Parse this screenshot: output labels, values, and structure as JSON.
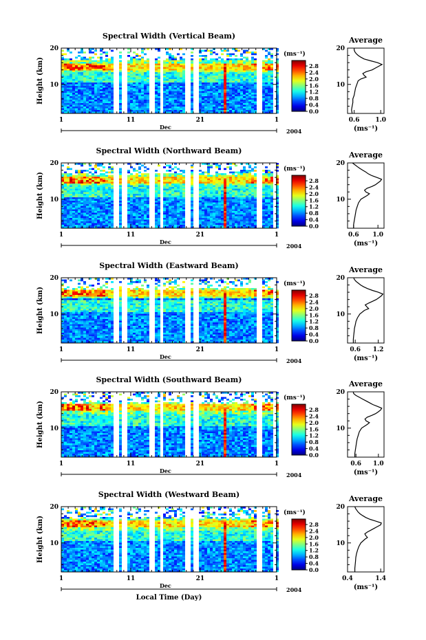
{
  "chart_data": [
    {
      "type": "heatmap",
      "title": "Spectral Width (Vertical Beam)",
      "ylabel": "Height (km)",
      "ylim": [
        2,
        20
      ],
      "y_ticks": [
        "20",
        "10"
      ],
      "x_ticks": [
        "1",
        "11",
        "21",
        "1"
      ],
      "x_month": "Dec",
      "x_year": "2004",
      "xlabel": "",
      "colorbar": {
        "unit": "(ms⁻¹)",
        "labels": [
          "0.0",
          "0.4",
          "0.8",
          "1.2",
          "1.6",
          "2.0",
          "2.4",
          "2.8"
        ],
        "range": [
          0,
          2.8
        ]
      },
      "layer_height_km": 15.2,
      "gaps": [
        [
          8.3,
          9.0
        ],
        [
          9.6,
          10.2
        ],
        [
          13.6,
          14.2
        ],
        [
          14.9,
          15.4
        ],
        [
          18.8,
          19.3
        ],
        [
          20.0,
          20.6
        ],
        [
          29.1,
          29.6
        ],
        [
          31.2,
          31.6
        ]
      ],
      "average": {
        "title": "Average",
        "xlim": [
          0.5,
          1.05
        ],
        "x_ticks": [
          "0.6",
          "1.0"
        ],
        "xlabel": "(ms⁻¹)",
        "height_km": [
          2.0,
          3.0,
          4.0,
          5.0,
          6.0,
          7.0,
          8.0,
          9.0,
          10.0,
          11.0,
          11.5,
          12.0,
          12.5,
          13.0,
          13.5,
          14.0,
          14.5,
          15.0,
          15.5,
          16.0,
          16.5,
          17.0,
          17.5,
          18.0,
          18.5,
          19.0,
          19.5,
          20.0
        ],
        "width": [
          0.57,
          0.56,
          0.57,
          0.58,
          0.58,
          0.6,
          0.61,
          0.62,
          0.64,
          0.66,
          0.7,
          0.78,
          0.75,
          0.73,
          0.78,
          0.87,
          0.92,
          0.97,
          1.02,
          0.95,
          0.85,
          0.75,
          0.7,
          0.66,
          0.63,
          0.61,
          0.6,
          0.6
        ]
      }
    },
    {
      "type": "heatmap",
      "title": "Spectral Width (Northward Beam)",
      "ylabel": "Height (km)",
      "ylim": [
        2,
        20
      ],
      "y_ticks": [
        "20",
        "10"
      ],
      "x_ticks": [
        "1",
        "11",
        "21",
        "1"
      ],
      "x_month": "Dec",
      "x_year": "2004",
      "xlabel": "",
      "colorbar": {
        "unit": "(ms⁻¹)",
        "labels": [
          "0.0",
          "0.4",
          "0.8",
          "1.2",
          "1.6",
          "2.0",
          "2.4",
          "2.8"
        ],
        "range": [
          0,
          2.8
        ]
      },
      "layer_height_km": 15.6,
      "gaps": [
        [
          8.3,
          9.0
        ],
        [
          9.6,
          10.2
        ],
        [
          13.6,
          14.2
        ],
        [
          14.9,
          15.4
        ],
        [
          18.8,
          19.3
        ],
        [
          20.0,
          20.6
        ],
        [
          29.1,
          29.6
        ],
        [
          31.2,
          31.6
        ]
      ],
      "average": {
        "title": "Average",
        "xlim": [
          0.5,
          1.1
        ],
        "x_ticks": [
          "0.6",
          "1.0"
        ],
        "xlabel": "(ms⁻¹)",
        "height_km": [
          2.0,
          3.0,
          4.0,
          5.0,
          6.0,
          7.0,
          8.0,
          9.0,
          10.0,
          11.0,
          11.5,
          12.0,
          12.5,
          13.0,
          13.5,
          14.0,
          14.5,
          15.0,
          15.5,
          16.0,
          16.5,
          17.0,
          17.5,
          18.0,
          18.5,
          19.0,
          19.5,
          20.0
        ],
        "width": [
          0.6,
          0.6,
          0.61,
          0.62,
          0.63,
          0.64,
          0.66,
          0.68,
          0.72,
          0.82,
          0.86,
          0.8,
          0.78,
          0.82,
          0.9,
          0.96,
          1.0,
          1.04,
          1.06,
          0.98,
          0.9,
          0.84,
          0.8,
          0.75,
          0.7,
          0.66,
          0.62,
          0.58
        ]
      }
    },
    {
      "type": "heatmap",
      "title": "Spectral Width (Eastward Beam)",
      "ylabel": "Height (km)",
      "ylim": [
        2,
        20
      ],
      "y_ticks": [
        "20",
        "10"
      ],
      "x_ticks": [
        "1",
        "11",
        "21",
        "1"
      ],
      "x_month": "Dec",
      "x_year": "2004",
      "xlabel": "",
      "colorbar": {
        "unit": "(ms⁻¹)",
        "labels": [
          "0.0",
          "0.4",
          "0.8",
          "1.2",
          "1.6",
          "2.0",
          "2.4",
          "2.8"
        ],
        "range": [
          0,
          2.8
        ]
      },
      "layer_height_km": 16.2,
      "gaps": [
        [
          8.3,
          9.0
        ],
        [
          9.6,
          10.2
        ],
        [
          13.6,
          14.2
        ],
        [
          14.9,
          15.4
        ],
        [
          18.8,
          19.3
        ],
        [
          20.0,
          20.6
        ],
        [
          29.1,
          29.6
        ],
        [
          31.2,
          31.6
        ]
      ],
      "average": {
        "title": "Average",
        "xlim": [
          0.4,
          1.35
        ],
        "x_ticks": [
          "0.6",
          "1.2"
        ],
        "xlabel": "(ms⁻¹)",
        "height_km": [
          2.0,
          3.0,
          4.0,
          5.0,
          6.0,
          7.0,
          8.0,
          9.0,
          10.0,
          11.0,
          11.5,
          12.0,
          12.5,
          13.0,
          13.5,
          14.0,
          14.5,
          15.0,
          15.5,
          16.0,
          16.5,
          17.0,
          17.5,
          18.0,
          18.5,
          19.0,
          19.5,
          20.0
        ],
        "width": [
          0.55,
          0.55,
          0.56,
          0.57,
          0.58,
          0.6,
          0.62,
          0.66,
          0.72,
          0.84,
          0.95,
          0.9,
          0.86,
          0.95,
          1.05,
          1.15,
          1.22,
          1.28,
          1.32,
          1.2,
          1.05,
          0.92,
          0.82,
          0.74,
          0.68,
          0.62,
          0.58,
          0.56
        ]
      }
    },
    {
      "type": "heatmap",
      "title": "Spectral Width (Southward Beam)",
      "ylabel": "Height (km)",
      "ylim": [
        2,
        20
      ],
      "y_ticks": [
        "20",
        "10"
      ],
      "x_ticks": [
        "1",
        "11",
        "21",
        "1"
      ],
      "x_month": "Dec",
      "x_year": "2004",
      "xlabel": "",
      "colorbar": {
        "unit": "(ms⁻¹)",
        "labels": [
          "0.0",
          "0.4",
          "0.8",
          "1.2",
          "1.6",
          "2.0",
          "2.4",
          "2.8"
        ],
        "range": [
          0,
          2.8
        ]
      },
      "layer_height_km": 15.8,
      "gaps": [
        [
          8.3,
          9.0
        ],
        [
          9.6,
          10.2
        ],
        [
          13.6,
          14.2
        ],
        [
          14.9,
          15.4
        ],
        [
          18.8,
          19.3
        ],
        [
          20.0,
          20.6
        ],
        [
          29.1,
          29.6
        ],
        [
          31.2,
          31.6
        ]
      ],
      "average": {
        "title": "Average",
        "xlim": [
          0.45,
          1.1
        ],
        "x_ticks": [
          "0.6",
          "1.0"
        ],
        "xlabel": "(ms⁻¹)",
        "height_km": [
          2.0,
          3.0,
          4.0,
          5.0,
          6.0,
          7.0,
          8.0,
          9.0,
          10.0,
          11.0,
          11.5,
          12.0,
          12.5,
          13.0,
          13.5,
          14.0,
          14.5,
          15.0,
          15.5,
          16.0,
          16.5,
          17.0,
          17.5,
          18.0,
          18.5,
          19.0,
          19.5,
          20.0
        ],
        "width": [
          0.58,
          0.58,
          0.59,
          0.6,
          0.61,
          0.62,
          0.64,
          0.66,
          0.7,
          0.8,
          0.84,
          0.78,
          0.76,
          0.8,
          0.88,
          0.95,
          1.0,
          1.04,
          1.06,
          0.98,
          0.9,
          0.84,
          0.78,
          0.72,
          0.66,
          0.6,
          0.56,
          0.55
        ]
      }
    },
    {
      "type": "heatmap",
      "title": "Spectral Width (Westward Beam)",
      "ylabel": "Height (km)",
      "ylim": [
        2,
        20
      ],
      "y_ticks": [
        "20",
        "10"
      ],
      "x_ticks": [
        "1",
        "11",
        "21",
        "1"
      ],
      "x_month": "Dec",
      "x_year": "2004",
      "xlabel": "Local Time (Day)",
      "colorbar": {
        "unit": "(ms⁻¹)",
        "labels": [
          "0.0",
          "0.4",
          "0.8",
          "1.2",
          "1.6",
          "2.0",
          "2.4",
          "2.8"
        ],
        "range": [
          0,
          2.8
        ]
      },
      "layer_height_km": 15.4,
      "gaps": [
        [
          8.3,
          9.0
        ],
        [
          9.6,
          10.2
        ],
        [
          13.6,
          14.2
        ],
        [
          14.9,
          15.4
        ],
        [
          18.8,
          19.3
        ],
        [
          20.0,
          20.6
        ],
        [
          29.1,
          29.6
        ],
        [
          31.2,
          31.6
        ]
      ],
      "average": {
        "title": "Average",
        "xlim": [
          0.4,
          1.5
        ],
        "x_ticks": [
          "0.4",
          "1.4"
        ],
        "xlabel": "(ms⁻¹)",
        "height_km": [
          2.0,
          3.0,
          4.0,
          5.0,
          6.0,
          7.0,
          8.0,
          9.0,
          10.0,
          11.0,
          11.5,
          12.0,
          12.5,
          13.0,
          13.5,
          14.0,
          14.5,
          15.0,
          15.5,
          16.0,
          16.5,
          17.0,
          17.5,
          18.0,
          18.5,
          19.0,
          19.5,
          20.0
        ],
        "width": [
          0.62,
          0.62,
          0.63,
          0.64,
          0.65,
          0.67,
          0.7,
          0.74,
          0.8,
          0.92,
          1.0,
          0.95,
          0.92,
          1.0,
          1.1,
          1.2,
          1.3,
          1.4,
          1.42,
          1.25,
          1.08,
          0.95,
          0.86,
          0.78,
          0.72,
          0.68,
          0.64,
          0.62
        ]
      }
    }
  ]
}
